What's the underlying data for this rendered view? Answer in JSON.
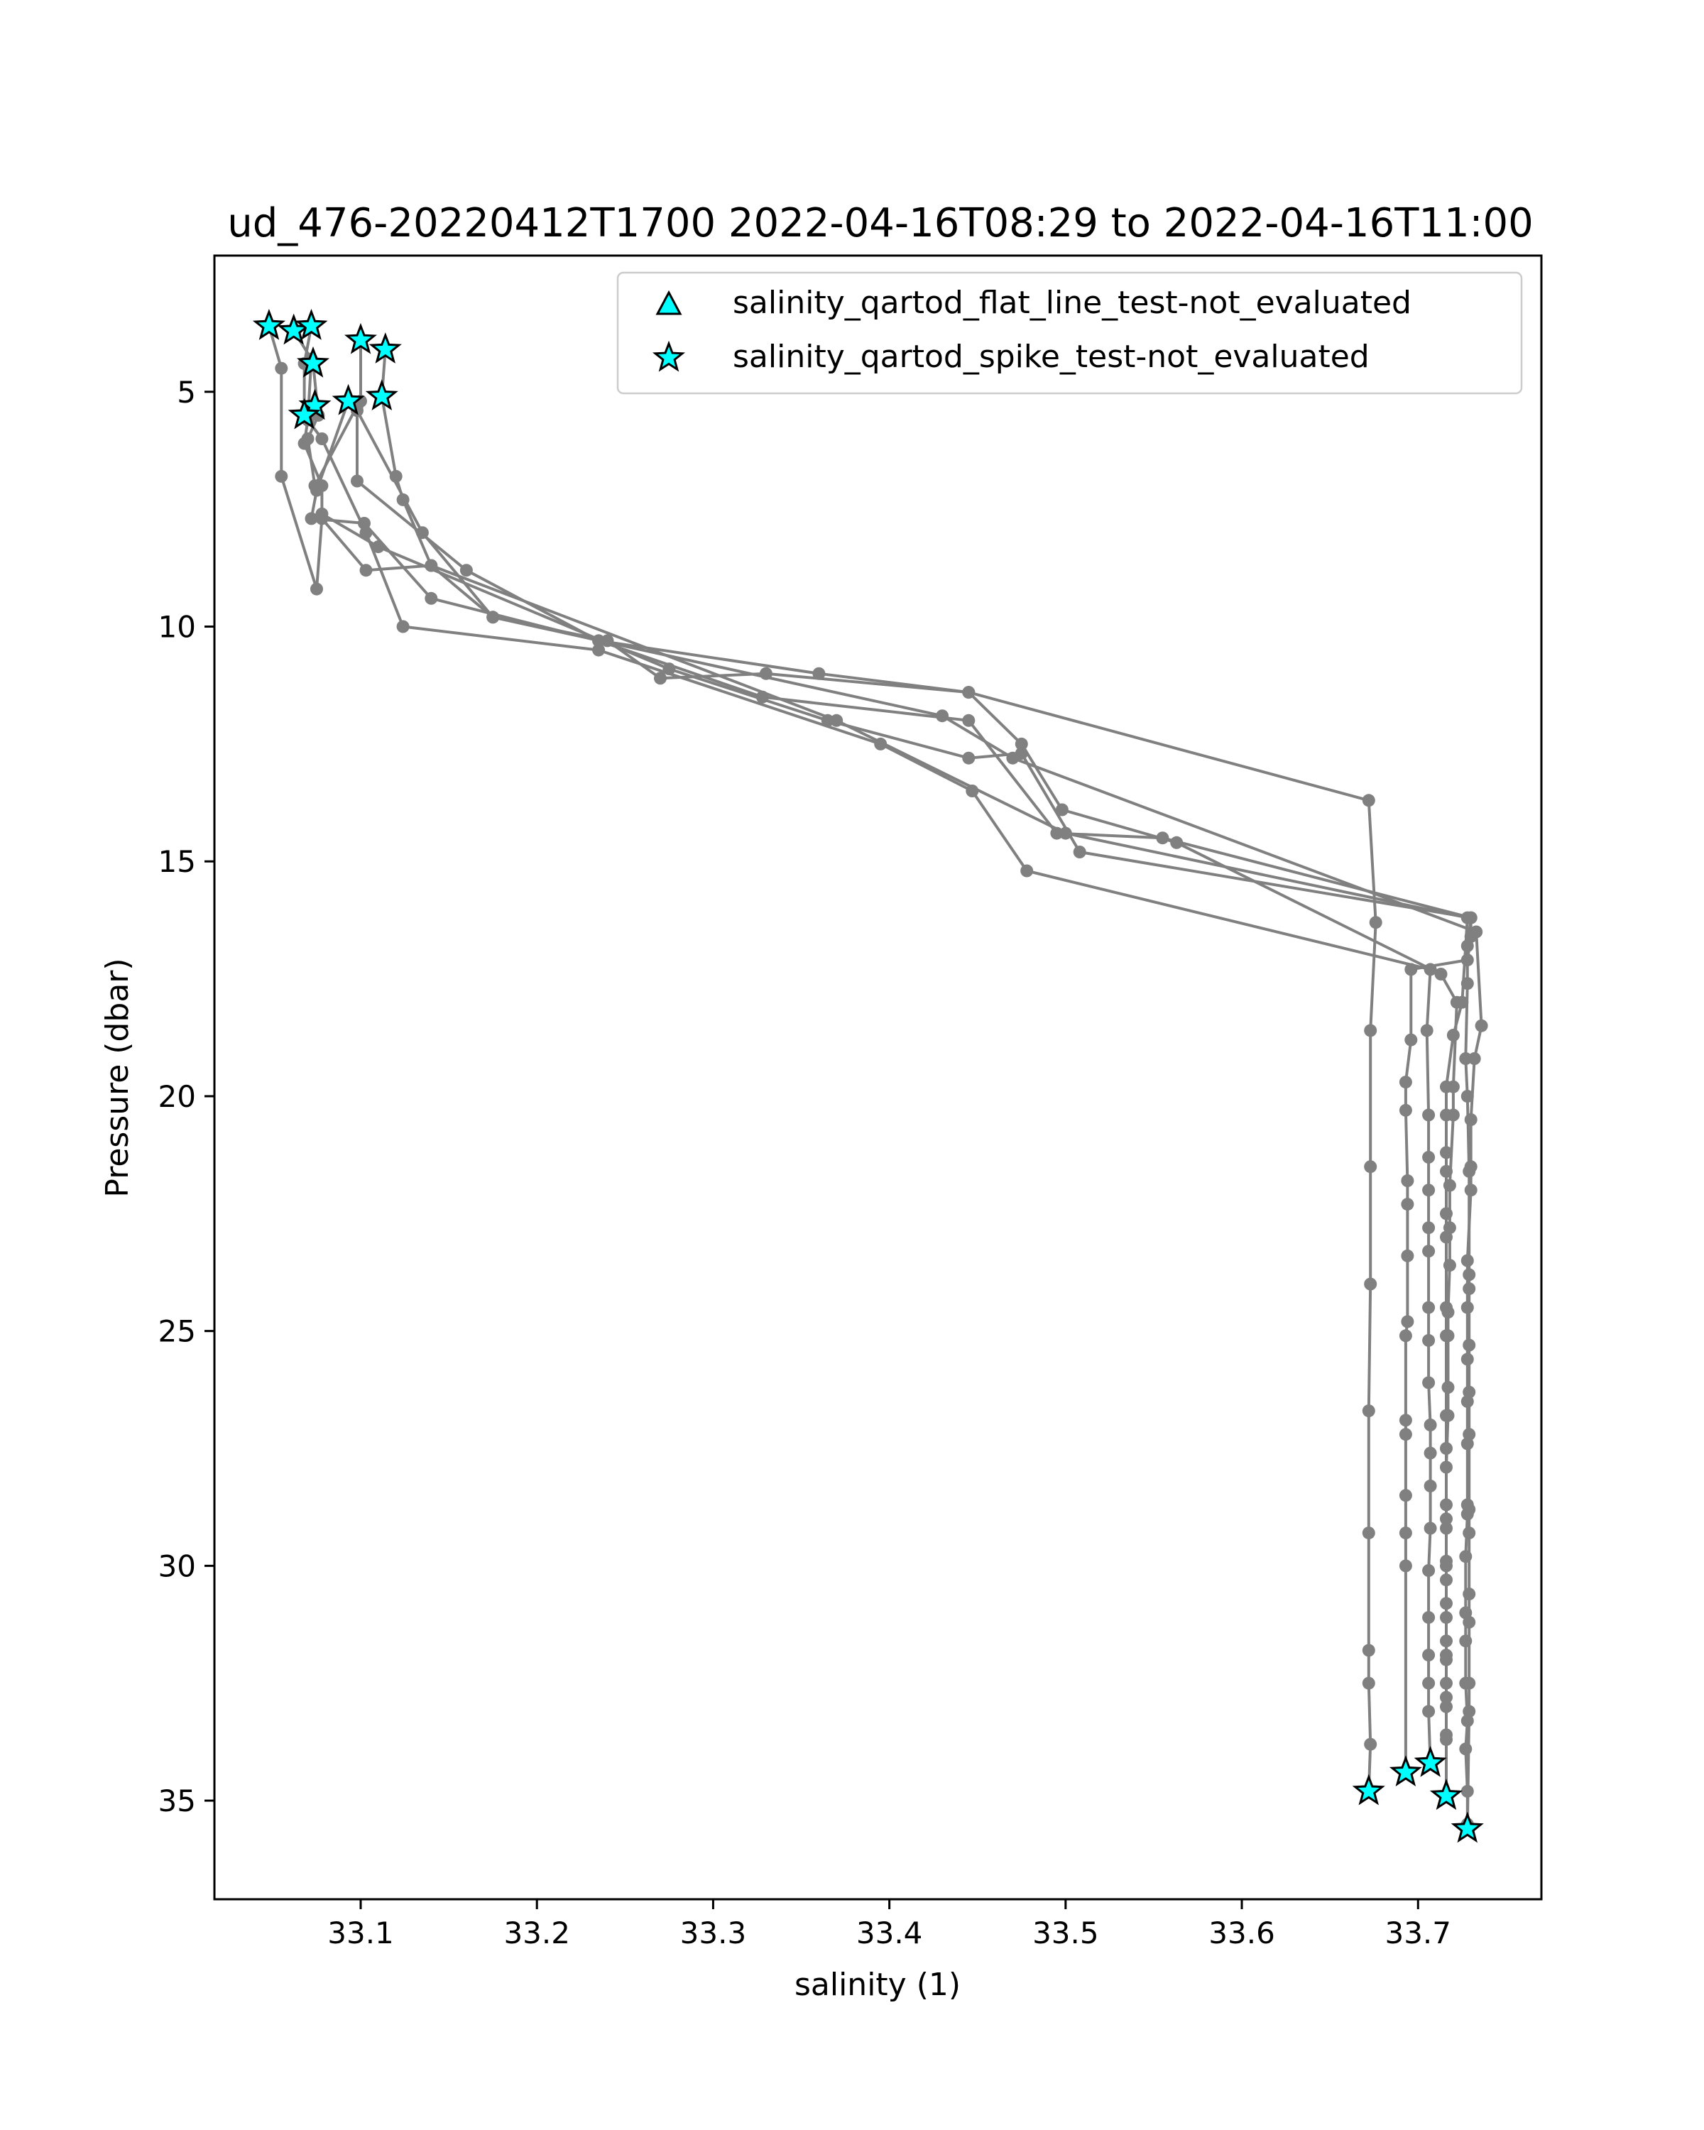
{
  "chart_data": {
    "type": "scatter",
    "title": "ud_476-20220412T1700 2022-04-16T08:29 to 2022-04-16T11:00",
    "xlabel": "salinity (1)",
    "ylabel": "Pressure (dbar)",
    "xlim": [
      33.017,
      33.77
    ],
    "ylim": [
      37.1,
      2.1
    ],
    "y_inverted": true,
    "grid": false,
    "legend_position": "upper-right",
    "x_ticks": [
      "33.1",
      "33.2",
      "33.3",
      "33.4",
      "33.5",
      "33.6",
      "33.7"
    ],
    "y_ticks": [
      "5",
      "10",
      "15",
      "20",
      "25",
      "30",
      "35"
    ],
    "colors": {
      "profile_line": "#808080",
      "flag_marker": "#00ffff",
      "marker_edge": "#000000"
    },
    "legend": [
      {
        "label": "salinity_qartod_flat_line_test-not_evaluated",
        "marker": "triangle"
      },
      {
        "label": "salinity_qartod_spike_test-not_evaluated",
        "marker": "star"
      }
    ],
    "series": [
      {
        "x": [
          33.048,
          33.055,
          33.055,
          33.075,
          33.078,
          33.103,
          33.14,
          33.175,
          33.24,
          33.27,
          33.33,
          33.445,
          33.475,
          33.498,
          33.563,
          33.713,
          33.722,
          33.72,
          33.72,
          33.718,
          33.718,
          33.718,
          33.717,
          33.717,
          33.717,
          33.717,
          33.716,
          33.716,
          33.716,
          33.716,
          33.716,
          33.716,
          33.716,
          33.716,
          33.716,
          33.716
        ],
        "y": [
          3.6,
          4.5,
          6.8,
          9.2,
          7.7,
          8.8,
          8.7,
          9.8,
          10.3,
          11.1,
          11.0,
          11.4,
          12.5,
          13.9,
          14.6,
          17.4,
          18.0,
          19.8,
          20.4,
          21.9,
          22.8,
          23.6,
          24.6,
          25.1,
          26.2,
          26.8,
          27.9,
          29.0,
          29.9,
          30.3,
          31.1,
          31.9,
          32.5,
          33.0,
          33.7,
          34.9
        ]
      },
      {
        "x": [
          33.062,
          33.072,
          33.07,
          33.068,
          33.078,
          33.078,
          33.11,
          33.275,
          33.365,
          33.445,
          33.475,
          33.508,
          33.73,
          33.728,
          33.728,
          33.727,
          33.728,
          33.729,
          33.729,
          33.729,
          33.729,
          33.729,
          33.729,
          33.729,
          33.729,
          33.729,
          33.729,
          33.729,
          33.729,
          33.728
        ],
        "y": [
          3.7,
          4.3,
          5.6,
          6.1,
          7.0,
          7.6,
          8.3,
          10.9,
          12.0,
          12.8,
          12.7,
          14.8,
          16.2,
          16.8,
          17.6,
          19.2,
          20.0,
          21.6,
          23.8,
          24.1,
          25.3,
          26.3,
          27.2,
          28.8,
          29.3,
          30.6,
          31.2,
          32.5,
          33.1,
          35.6
        ]
      },
      {
        "x": [
          33.072,
          33.068,
          33.068,
          33.078,
          33.103,
          33.124,
          33.235,
          33.395,
          33.447,
          33.478,
          33.707,
          33.705,
          33.706,
          33.706,
          33.706,
          33.706,
          33.706,
          33.706,
          33.706,
          33.706,
          33.707,
          33.707,
          33.707,
          33.707,
          33.706,
          33.706,
          33.706,
          33.706,
          33.706,
          33.707
        ],
        "y": [
          3.6,
          4.4,
          5.5,
          6.0,
          8.0,
          10.0,
          10.5,
          12.5,
          13.5,
          15.2,
          17.3,
          18.6,
          20.4,
          21.3,
          22.0,
          22.8,
          23.3,
          24.5,
          25.2,
          26.1,
          27.0,
          27.6,
          28.3,
          29.2,
          30.1,
          31.1,
          31.9,
          32.5,
          33.1,
          34.2
        ]
      },
      {
        "x": [
          33.073,
          33.076,
          33.07,
          33.074,
          33.098,
          33.098,
          33.16,
          33.235,
          33.328,
          33.445,
          33.495,
          33.555,
          33.73,
          33.73,
          33.728,
          33.696,
          33.696,
          33.693,
          33.693,
          33.694,
          33.694,
          33.694,
          33.694,
          33.693,
          33.693,
          33.693,
          33.693,
          33.693,
          33.693,
          33.693
        ],
        "y": [
          4.4,
          5.5,
          6.0,
          7.0,
          5.3,
          6.9,
          8.8,
          10.3,
          11.5,
          12.0,
          14.4,
          14.5,
          16.2,
          16.6,
          17.1,
          17.3,
          18.8,
          19.7,
          20.3,
          21.8,
          22.3,
          23.4,
          24.8,
          25.1,
          26.9,
          27.2,
          28.5,
          29.3,
          30.0,
          34.4
        ]
      },
      {
        "x": [
          33.1,
          33.1,
          33.098,
          33.135,
          33.175,
          33.43,
          33.47,
          33.733,
          33.736,
          33.732,
          33.73,
          33.73,
          33.73,
          33.728,
          33.728,
          33.728,
          33.728,
          33.728,
          33.728,
          33.728,
          33.727,
          33.727,
          33.727,
          33.727,
          33.728,
          33.727,
          33.728,
          33.728
        ],
        "y": [
          3.9,
          5.2,
          5.4,
          8.0,
          9.8,
          11.9,
          12.8,
          16.5,
          18.5,
          19.2,
          20.5,
          21.5,
          22.0,
          23.5,
          24.5,
          25.6,
          26.5,
          27.4,
          28.7,
          28.9,
          29.8,
          31.0,
          31.6,
          32.5,
          33.3,
          33.9,
          34.8,
          35.5
        ]
      },
      {
        "x": [
          33.114,
          33.112,
          33.12,
          33.124,
          33.14,
          33.37,
          33.5,
          33.728,
          33.725,
          33.72,
          33.716,
          33.716,
          33.716,
          33.716,
          33.716,
          33.716,
          33.716,
          33.716,
          33.716,
          33.716,
          33.716,
          33.716,
          33.716,
          33.716,
          33.716,
          33.716,
          33.716,
          33.716,
          33.716
        ],
        "y": [
          4.1,
          5.1,
          6.8,
          7.3,
          8.7,
          12.0,
          14.4,
          16.2,
          18.0,
          18.7,
          19.8,
          20.4,
          21.2,
          21.6,
          22.5,
          23.0,
          24.5,
          25.1,
          26.8,
          27.5,
          28.7,
          29.2,
          30.0,
          30.8,
          31.6,
          32.0,
          32.8,
          33.6,
          34.9
        ]
      },
      {
        "x": [
          33.093,
          33.075,
          33.072,
          33.102,
          33.14,
          33.235,
          33.36,
          33.445,
          33.672,
          33.676,
          33.673,
          33.673,
          33.673,
          33.672,
          33.672,
          33.672,
          33.672,
          33.673,
          33.672
        ],
        "y": [
          5.2,
          7.1,
          7.7,
          7.8,
          9.4,
          10.3,
          11.0,
          11.4,
          13.7,
          16.3,
          18.6,
          21.5,
          24.0,
          26.7,
          29.3,
          31.8,
          32.5,
          33.8,
          34.8
        ]
      }
    ],
    "flags": {
      "flat_line_not_evaluated": [],
      "spike_not_evaluated": [
        {
          "x": 33.048,
          "y": 3.6
        },
        {
          "x": 33.062,
          "y": 3.7
        },
        {
          "x": 33.072,
          "y": 3.6
        },
        {
          "x": 33.073,
          "y": 4.4
        },
        {
          "x": 33.1,
          "y": 3.9
        },
        {
          "x": 33.114,
          "y": 4.1
        },
        {
          "x": 33.093,
          "y": 5.2
        },
        {
          "x": 33.112,
          "y": 5.1
        },
        {
          "x": 33.074,
          "y": 5.3
        },
        {
          "x": 33.068,
          "y": 5.5
        },
        {
          "x": 33.672,
          "y": 34.8
        },
        {
          "x": 33.693,
          "y": 34.4
        },
        {
          "x": 33.707,
          "y": 34.2
        },
        {
          "x": 33.716,
          "y": 34.9
        },
        {
          "x": 33.728,
          "y": 35.6
        }
      ]
    }
  }
}
